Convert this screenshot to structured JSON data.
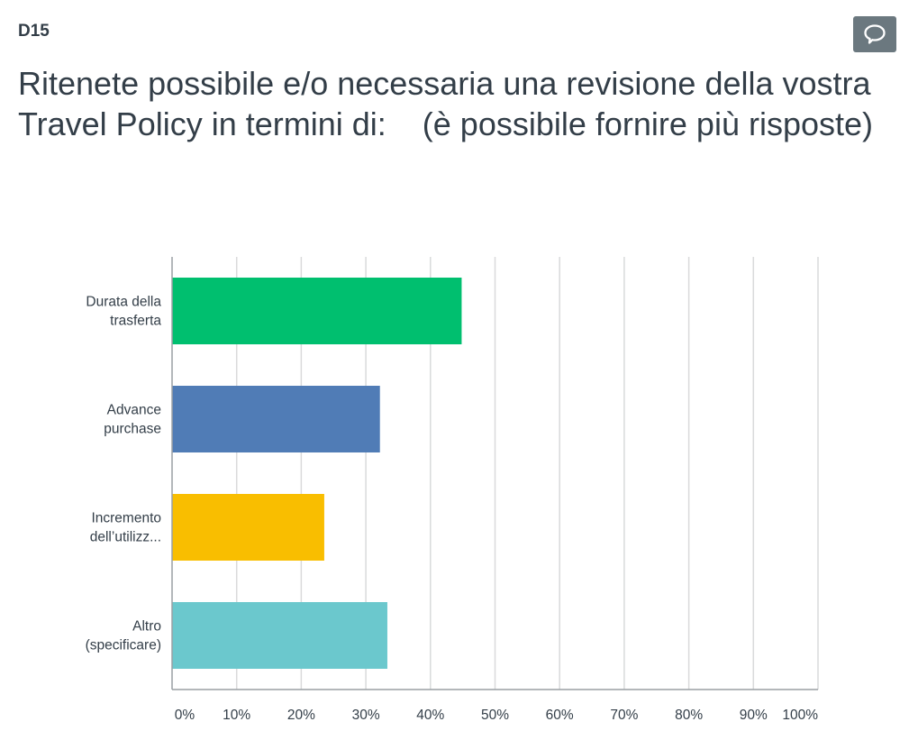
{
  "question": {
    "id": "D15",
    "title": "Ritenete possibile e/o necessaria una revisione della vostra Travel Policy in termini di:    (è possibile fornire più risposte)"
  },
  "comment_icon": "speech-bubble-icon",
  "colors": {
    "bar1": "#00bf6f",
    "bar2": "#507cb6",
    "bar3": "#f9be00",
    "bar4": "#6bc8cd",
    "grid": "#d9dadb",
    "axis": "#9a9fa3",
    "comment_button": "#6b787f"
  },
  "chart_data": {
    "type": "bar",
    "orientation": "horizontal",
    "categories": [
      [
        "Durata della",
        "trasferta"
      ],
      [
        "Advance",
        "purchase"
      ],
      [
        "Incremento",
        "dell’utilizz..."
      ],
      [
        "Altro",
        "(specificare)"
      ]
    ],
    "values": [
      44.83,
      32.18,
      23.56,
      33.33
    ],
    "xlim": [
      0,
      100
    ],
    "x_ticks": [
      "0%",
      "10%",
      "20%",
      "30%",
      "40%",
      "50%",
      "60%",
      "70%",
      "80%",
      "90%",
      "100%"
    ],
    "grid": true,
    "title": "",
    "xlabel": "",
    "ylabel": ""
  }
}
